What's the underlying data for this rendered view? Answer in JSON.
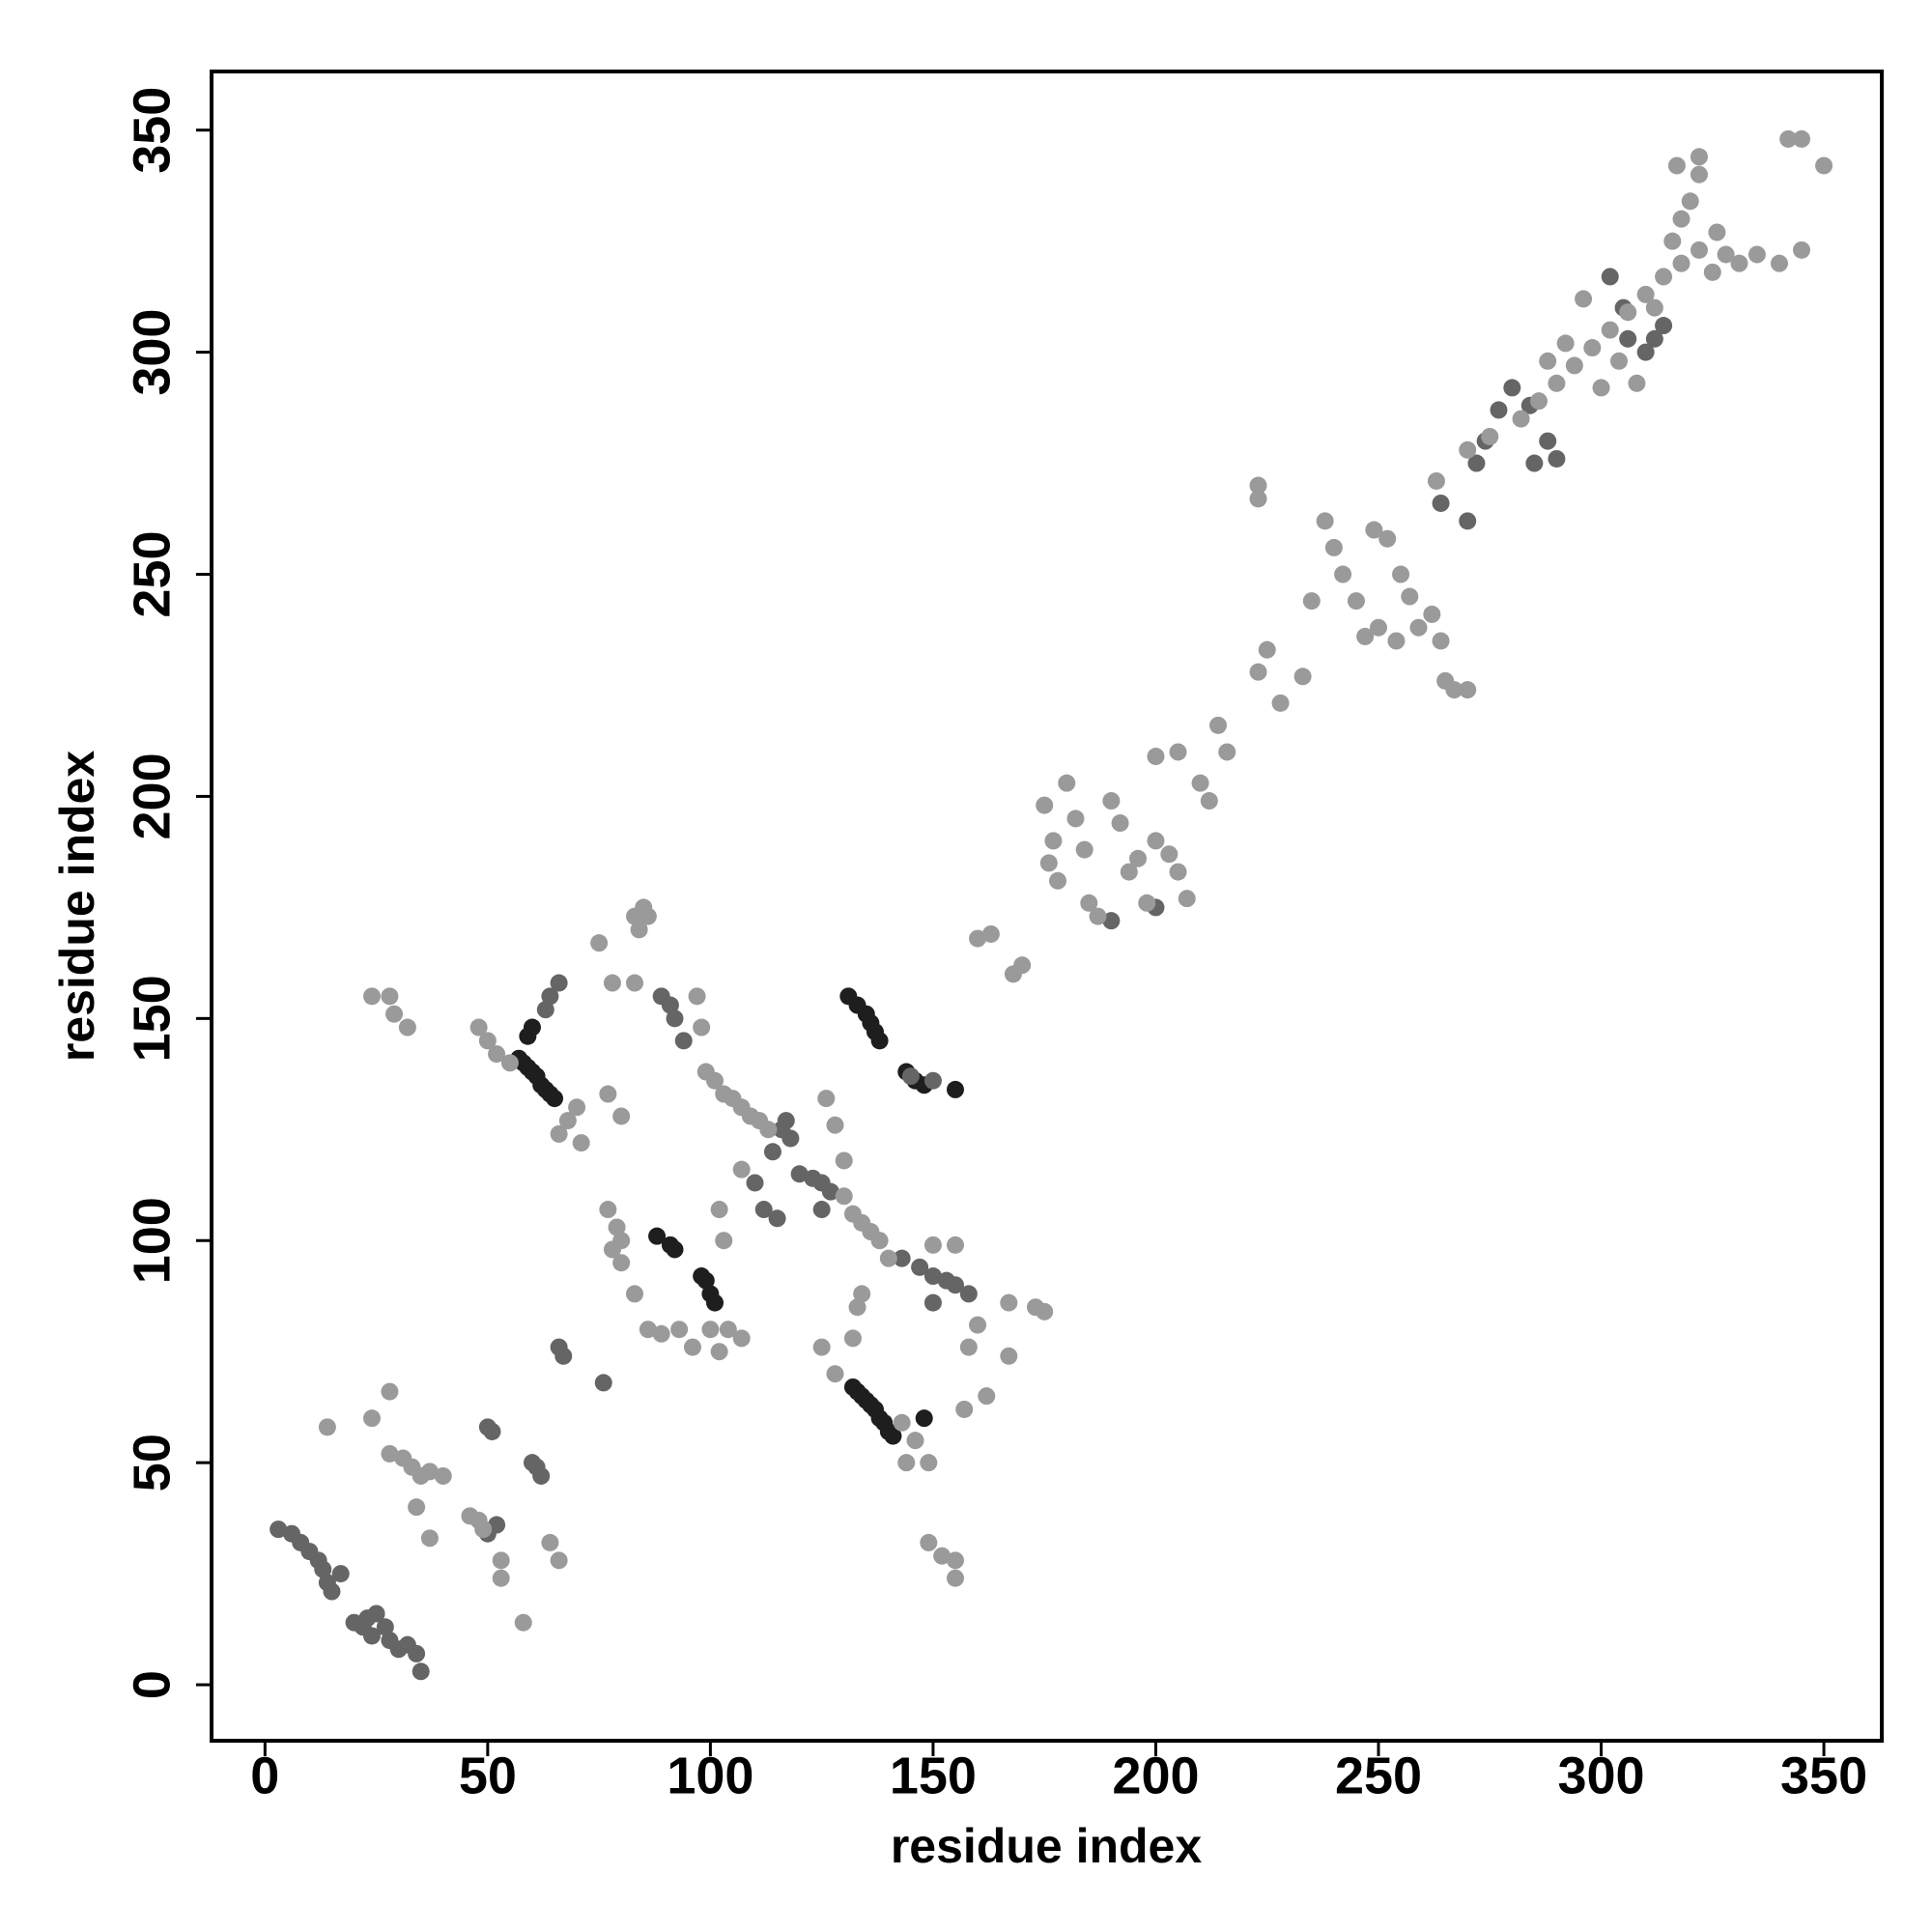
{
  "chart_data": {
    "type": "scatter",
    "xlabel": "residue index",
    "ylabel": "residue index",
    "xlim": [
      -12,
      363
    ],
    "ylim": [
      -12.6,
      363.2
    ],
    "xticks": [
      0,
      50,
      100,
      150,
      200,
      250,
      300,
      350
    ],
    "yticks": [
      0,
      50,
      100,
      150,
      200,
      250,
      300,
      350
    ],
    "grid": false,
    "series": [
      {
        "color": "#1e1e1e",
        "x": [
          57,
          58,
          59,
          60,
          61,
          62,
          63,
          64,
          65,
          60,
          59,
          88,
          91,
          92,
          98,
          99,
          100,
          101,
          131,
          133,
          135,
          136,
          137,
          138,
          132,
          133,
          134,
          135,
          136,
          137,
          138,
          139,
          140,
          141,
          148,
          144,
          146,
          148,
          155
        ],
        "values": [
          141,
          140,
          139,
          138,
          137,
          135,
          134,
          133,
          132,
          148,
          146,
          101,
          99,
          98,
          92,
          91,
          88,
          86,
          155,
          153,
          151,
          149,
          147,
          145,
          67,
          66,
          65,
          64,
          63,
          62,
          60,
          59,
          57,
          56,
          60,
          138,
          136,
          135,
          134
        ]
      },
      {
        "color": "#656565",
        "x": [
          3,
          6,
          8,
          10,
          12,
          13,
          14,
          15,
          17,
          20,
          22,
          23,
          25,
          27,
          28,
          30,
          32,
          34,
          35,
          24,
          50,
          51,
          60,
          61,
          62,
          52,
          50,
          66,
          67,
          76,
          63,
          66,
          64,
          89,
          91,
          92,
          94,
          110,
          112,
          115,
          117,
          118,
          116,
          114,
          120,
          123,
          125,
          127,
          125,
          143,
          147,
          150,
          153,
          155,
          158,
          150,
          145,
          150,
          264,
          270,
          272,
          274,
          277,
          280,
          284,
          285,
          288,
          290,
          302,
          305,
          306,
          310,
          312,
          314,
          190,
          200
        ],
        "values": [
          35,
          34,
          32,
          30,
          28,
          26,
          23,
          21,
          25,
          14,
          13,
          15,
          16,
          13,
          10,
          8,
          9,
          7,
          3,
          11,
          58,
          57,
          50,
          49,
          47,
          36,
          34,
          76,
          74,
          68,
          152,
          158,
          155,
          155,
          153,
          150,
          145,
          113,
          107,
          105,
          127,
          123,
          125,
          120,
          115,
          114,
          113,
          111,
          107,
          96,
          94,
          92,
          91,
          90,
          88,
          86,
          137,
          136,
          266,
          262,
          275,
          280,
          287,
          292,
          288,
          275,
          280,
          276,
          317,
          310,
          303,
          300,
          303,
          306,
          172,
          175
        ]
      },
      {
        "color": "#9a9a9a",
        "x": [
          14,
          24,
          28,
          29,
          32,
          28,
          24,
          28,
          31,
          33,
          35,
          37,
          40,
          34,
          37,
          46,
          48,
          49,
          53,
          53,
          58,
          66,
          64,
          48,
          50,
          52,
          55,
          68,
          66,
          70,
          71,
          77,
          79,
          80,
          78,
          80,
          83,
          86,
          89,
          93,
          96,
          75,
          83,
          85,
          84,
          86,
          78,
          83,
          77,
          80,
          97,
          98,
          99,
          101,
          103,
          105,
          107,
          109,
          111,
          113,
          102,
          103,
          107,
          100,
          102,
          104,
          107,
          126,
          128,
          130,
          130,
          132,
          134,
          136,
          138,
          140,
          134,
          133,
          125,
          128,
          132,
          143,
          146,
          149,
          144,
          150,
          155,
          158,
          160,
          162,
          157,
          149,
          152,
          155,
          155,
          160,
          163,
          168,
          170,
          167,
          173,
          175,
          167,
          175,
          177,
          176,
          178,
          180,
          182,
          184,
          185,
          187,
          190,
          192,
          194,
          196,
          198,
          200,
          203,
          205,
          207,
          200,
          205,
          210,
          212,
          214,
          216,
          223,
          225,
          228,
          233,
          235,
          238,
          240,
          242,
          245,
          247,
          249,
          252,
          255,
          257,
          259,
          262,
          264,
          265,
          267,
          270,
          250,
          254,
          223,
          223,
          263,
          270,
          275,
          282,
          286,
          290,
          294,
          298,
          302,
          306,
          310,
          314,
          318,
          322,
          326,
          296,
          292,
          288,
          300,
          304,
          308,
          312,
          316,
          318,
          320,
          322,
          317,
          322,
          325,
          328,
          331,
          335,
          340,
          342,
          345,
          350,
          345
        ],
        "values": [
          58,
          155,
          155,
          151,
          148,
          66,
          60,
          52,
          51,
          49,
          47,
          48,
          47,
          40,
          33,
          38,
          37,
          35,
          28,
          24,
          14,
          28,
          32,
          148,
          145,
          142,
          140,
          127,
          124,
          130,
          122,
          107,
          103,
          100,
          98,
          95,
          88,
          80,
          79,
          80,
          76,
          167,
          173,
          175,
          170,
          173,
          158,
          158,
          133,
          128,
          155,
          148,
          138,
          136,
          133,
          132,
          130,
          128,
          127,
          125,
          107,
          100,
          116,
          80,
          75,
          80,
          78,
          132,
          126,
          118,
          110,
          106,
          104,
          102,
          100,
          96,
          88,
          85,
          76,
          70,
          78,
          59,
          55,
          50,
          50,
          99,
          99,
          76,
          81,
          65,
          62,
          32,
          29,
          28,
          24,
          168,
          169,
          160,
          162,
          86,
          85,
          84,
          74,
          198,
          190,
          185,
          181,
          203,
          195,
          188,
          176,
          173,
          199,
          194,
          183,
          186,
          176,
          190,
          187,
          183,
          177,
          209,
          210,
          203,
          199,
          216,
          210,
          228,
          233,
          221,
          227,
          244,
          262,
          256,
          250,
          244,
          236,
          260,
          258,
          250,
          245,
          238,
          241,
          235,
          226,
          224,
          224,
          238,
          235,
          270,
          267,
          271,
          278,
          281,
          285,
          289,
          293,
          297,
          301,
          305,
          309,
          313,
          317,
          320,
          323,
          327,
          312,
          302,
          298,
          292,
          298,
          293,
          310,
          325,
          330,
          334,
          340,
          342,
          344,
          318,
          322,
          320,
          322,
          320,
          348,
          348,
          342,
          323
        ]
      }
    ]
  }
}
